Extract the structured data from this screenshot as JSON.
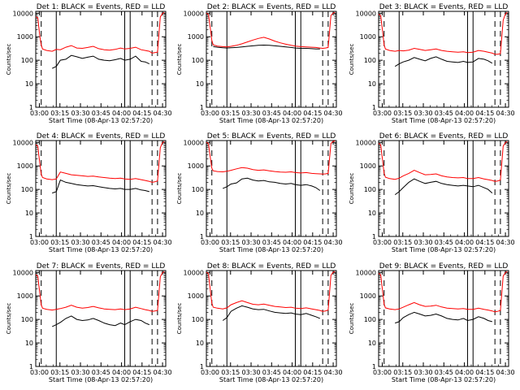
{
  "figure": {
    "xlabel": "Start Time (08-Apr-13 02:57:20)",
    "ylabel": "Counts/sec",
    "x_tick_labels": [
      "03:00",
      "03:15",
      "03:30",
      "03:45",
      "04:00",
      "04:15",
      "04:30"
    ],
    "y_tick_labels": [
      "1",
      "10",
      "100",
      "1000",
      "10000"
    ],
    "colors": {
      "events": "#000000",
      "lld": "#ff0000",
      "frame": "#000000"
    }
  },
  "chart_data": [
    {
      "type": "line",
      "title": "Det 1: BLACK = Events, RED = LLD",
      "x_unit": "minutes after 02:57:20",
      "xlim": [
        0,
        95
      ],
      "ylim": [
        1,
        12000
      ],
      "y_scale": "log",
      "solid_markers_x": [
        15,
        65,
        69
      ],
      "dashed_markers_x": [
        4,
        85,
        89
      ],
      "x": [
        0,
        1.5,
        3,
        4,
        5,
        8,
        12,
        15,
        18,
        22,
        26,
        30,
        34,
        38,
        42,
        46,
        50,
        54,
        58,
        62,
        65,
        69,
        73,
        77,
        80,
        83,
        85,
        87,
        89,
        91,
        92.5,
        94
      ],
      "series": [
        {
          "name": "Events",
          "color": "#000000",
          "values": [
            null,
            null,
            null,
            null,
            null,
            null,
            45,
            55,
            100,
            110,
            160,
            140,
            120,
            135,
            150,
            110,
            100,
            95,
            105,
            120,
            100,
            110,
            150,
            90,
            85,
            70,
            null,
            null,
            null,
            null,
            null,
            null
          ]
        },
        {
          "name": "LLD",
          "color": "#ff0000",
          "values": [
            7000,
            6500,
            1000,
            450,
            300,
            260,
            240,
            290,
            280,
            360,
            420,
            330,
            320,
            350,
            390,
            310,
            280,
            270,
            290,
            330,
            300,
            320,
            360,
            280,
            260,
            240,
            200,
            210,
            220,
            7000,
            9500,
            11000
          ]
        }
      ]
    },
    {
      "type": "line",
      "title": "Det 2: BLACK = Events, RED = LLD",
      "x_unit": "minutes after 02:57:20",
      "xlim": [
        0,
        95
      ],
      "ylim": [
        1,
        12000
      ],
      "y_scale": "log",
      "solid_markers_x": [
        15,
        65,
        69
      ],
      "dashed_markers_x": [
        4,
        85,
        89
      ],
      "x": [
        0,
        1.5,
        3,
        4,
        5,
        8,
        12,
        15,
        18,
        22,
        26,
        30,
        34,
        38,
        42,
        46,
        50,
        54,
        58,
        62,
        65,
        69,
        73,
        77,
        80,
        83,
        85,
        87,
        89,
        91,
        92.5,
        94
      ],
      "series": [
        {
          "name": "Events",
          "color": "#000000",
          "values": [
            null,
            null,
            null,
            null,
            380,
            360,
            340,
            330,
            340,
            350,
            370,
            390,
            410,
            430,
            440,
            430,
            410,
            390,
            370,
            350,
            330,
            320,
            320,
            310,
            300,
            300,
            null,
            null,
            null,
            null,
            null,
            null
          ]
        },
        {
          "name": "LLD",
          "color": "#ff0000",
          "values": [
            10000,
            9000,
            2000,
            700,
            450,
            400,
            380,
            370,
            390,
            430,
            500,
            600,
            720,
            850,
            950,
            800,
            650,
            550,
            480,
            430,
            400,
            380,
            370,
            360,
            350,
            330,
            320,
            330,
            350,
            8000,
            10000,
            11000
          ]
        }
      ]
    },
    {
      "type": "line",
      "title": "Det 3: BLACK = Events, RED = LLD",
      "x_unit": "minutes after 02:57:20",
      "xlim": [
        0,
        95
      ],
      "ylim": [
        1,
        12000
      ],
      "y_scale": "log",
      "solid_markers_x": [
        15,
        65,
        69
      ],
      "dashed_markers_x": [
        4,
        85,
        89
      ],
      "x": [
        0,
        1.5,
        3,
        4,
        5,
        8,
        12,
        15,
        18,
        22,
        26,
        30,
        34,
        38,
        42,
        46,
        50,
        54,
        58,
        62,
        65,
        69,
        73,
        77,
        80,
        83,
        85,
        87,
        89,
        91,
        92.5,
        94
      ],
      "series": [
        {
          "name": "Events",
          "color": "#000000",
          "values": [
            null,
            null,
            null,
            null,
            null,
            null,
            55,
            70,
            85,
            100,
            130,
            110,
            95,
            120,
            140,
            110,
            90,
            85,
            80,
            90,
            80,
            85,
            120,
            110,
            95,
            75,
            null,
            null,
            null,
            null,
            null,
            null
          ]
        },
        {
          "name": "LLD",
          "color": "#ff0000",
          "values": [
            9000,
            8000,
            1500,
            450,
            300,
            260,
            240,
            260,
            250,
            270,
            320,
            290,
            260,
            280,
            300,
            260,
            240,
            230,
            220,
            230,
            210,
            220,
            260,
            240,
            220,
            200,
            180,
            180,
            190,
            5000,
            9000,
            11000
          ]
        }
      ]
    },
    {
      "type": "line",
      "title": "Det 4: BLACK = Events, RED = LLD",
      "x_unit": "minutes after 02:57:20",
      "xlim": [
        0,
        95
      ],
      "ylim": [
        1,
        12000
      ],
      "y_scale": "log",
      "solid_markers_x": [
        15,
        65,
        69
      ],
      "dashed_markers_x": [
        4,
        85,
        89
      ],
      "x": [
        0,
        1.5,
        3,
        4,
        5,
        8,
        12,
        15,
        18,
        22,
        26,
        30,
        34,
        38,
        42,
        46,
        50,
        54,
        58,
        62,
        65,
        69,
        73,
        77,
        80,
        83,
        85,
        87,
        89,
        91,
        92.5,
        94
      ],
      "series": [
        {
          "name": "Events",
          "color": "#000000",
          "values": [
            null,
            null,
            null,
            null,
            null,
            null,
            70,
            80,
            250,
            200,
            180,
            160,
            150,
            140,
            145,
            130,
            120,
            110,
            105,
            110,
            100,
            100,
            110,
            95,
            90,
            80,
            null,
            null,
            null,
            null,
            null,
            null
          ]
        },
        {
          "name": "LLD",
          "color": "#ff0000",
          "values": [
            8000,
            7000,
            1200,
            450,
            320,
            280,
            260,
            280,
            550,
            480,
            420,
            400,
            380,
            360,
            370,
            340,
            320,
            300,
            290,
            300,
            280,
            270,
            290,
            260,
            240,
            220,
            200,
            210,
            230,
            6000,
            9500,
            11000
          ]
        }
      ]
    },
    {
      "type": "line",
      "title": "Det 5: BLACK = Events, RED = LLD",
      "x_unit": "minutes after 02:57:20",
      "xlim": [
        0,
        95
      ],
      "ylim": [
        1,
        12000
      ],
      "y_scale": "log",
      "solid_markers_x": [
        15,
        65,
        69
      ],
      "dashed_markers_x": [
        4,
        85,
        89
      ],
      "x": [
        0,
        1.5,
        3,
        4,
        5,
        8,
        12,
        15,
        18,
        22,
        26,
        30,
        34,
        38,
        42,
        46,
        50,
        54,
        58,
        62,
        65,
        69,
        73,
        77,
        80,
        83,
        85,
        87,
        89,
        91,
        92.5,
        94
      ],
      "series": [
        {
          "name": "Events",
          "color": "#000000",
          "values": [
            null,
            null,
            null,
            null,
            null,
            null,
            110,
            130,
            170,
            190,
            280,
            300,
            250,
            230,
            240,
            210,
            200,
            180,
            170,
            180,
            160,
            150,
            160,
            140,
            120,
            90,
            null,
            null,
            null,
            null,
            null,
            null
          ]
        },
        {
          "name": "LLD",
          "color": "#ff0000",
          "values": [
            10000,
            9000,
            2000,
            800,
            620,
            580,
            560,
            590,
            650,
            750,
            850,
            800,
            700,
            650,
            680,
            620,
            580,
            550,
            540,
            560,
            520,
            500,
            520,
            480,
            470,
            460,
            450,
            460,
            480,
            9000,
            11000,
            11500
          ]
        }
      ]
    },
    {
      "type": "line",
      "title": "Det 6: BLACK = Events, RED = LLD",
      "x_unit": "minutes after 02:57:20",
      "xlim": [
        0,
        95
      ],
      "ylim": [
        1,
        12000
      ],
      "y_scale": "log",
      "solid_markers_x": [
        15,
        65,
        69
      ],
      "dashed_markers_x": [
        4,
        85,
        89
      ],
      "x": [
        0,
        1.5,
        3,
        4,
        5,
        8,
        12,
        15,
        18,
        22,
        26,
        30,
        34,
        38,
        42,
        46,
        50,
        54,
        58,
        62,
        65,
        69,
        73,
        77,
        80,
        83,
        85,
        87,
        89,
        91,
        92.5,
        94
      ],
      "series": [
        {
          "name": "Events",
          "color": "#000000",
          "values": [
            null,
            null,
            null,
            null,
            null,
            null,
            60,
            80,
            120,
            200,
            280,
            220,
            180,
            200,
            220,
            180,
            160,
            150,
            140,
            150,
            140,
            130,
            150,
            120,
            100,
            70,
            null,
            null,
            null,
            null,
            null,
            null
          ]
        },
        {
          "name": "LLD",
          "color": "#ff0000",
          "values": [
            9000,
            8000,
            1500,
            500,
            330,
            290,
            270,
            300,
            380,
            480,
            650,
            520,
            420,
            430,
            460,
            380,
            340,
            320,
            310,
            320,
            290,
            290,
            320,
            280,
            260,
            240,
            220,
            230,
            250,
            7000,
            9500,
            11000
          ]
        }
      ]
    },
    {
      "type": "line",
      "title": "Det 7: BLACK = Events, RED = LLD",
      "x_unit": "minutes after 02:57:20",
      "xlim": [
        0,
        95
      ],
      "ylim": [
        1,
        12000
      ],
      "y_scale": "log",
      "solid_markers_x": [
        15,
        65,
        69
      ],
      "dashed_markers_x": [
        4,
        85,
        89
      ],
      "x": [
        0,
        1.5,
        3,
        4,
        5,
        8,
        12,
        15,
        18,
        22,
        26,
        30,
        34,
        38,
        42,
        46,
        50,
        54,
        58,
        62,
        65,
        69,
        73,
        77,
        80,
        83,
        85,
        87,
        89,
        91,
        92.5,
        94
      ],
      "series": [
        {
          "name": "Events",
          "color": "#000000",
          "values": [
            null,
            null,
            null,
            null,
            null,
            null,
            50,
            60,
            75,
            110,
            140,
            100,
            90,
            95,
            110,
            90,
            70,
            60,
            55,
            70,
            60,
            80,
            100,
            90,
            70,
            60,
            null,
            null,
            null,
            null,
            null,
            null
          ]
        },
        {
          "name": "LLD",
          "color": "#ff0000",
          "values": [
            8000,
            7000,
            1200,
            420,
            300,
            270,
            250,
            270,
            290,
            330,
            400,
            330,
            300,
            320,
            360,
            310,
            280,
            270,
            260,
            280,
            260,
            280,
            330,
            290,
            260,
            240,
            220,
            230,
            240,
            6500,
            9500,
            11000
          ]
        }
      ]
    },
    {
      "type": "line",
      "title": "Det 8: BLACK = Events, RED = LLD",
      "x_unit": "minutes after 02:57:20",
      "xlim": [
        0,
        95
      ],
      "ylim": [
        1,
        12000
      ],
      "y_scale": "log",
      "solid_markers_x": [
        15,
        65,
        69
      ],
      "dashed_markers_x": [
        4,
        85,
        89
      ],
      "x": [
        0,
        1.5,
        3,
        4,
        5,
        8,
        12,
        15,
        18,
        22,
        26,
        30,
        34,
        38,
        42,
        46,
        50,
        54,
        58,
        62,
        65,
        69,
        73,
        77,
        80,
        83,
        85,
        87,
        89,
        91,
        92.5,
        94
      ],
      "series": [
        {
          "name": "Events",
          "color": "#000000",
          "values": [
            null,
            null,
            null,
            null,
            null,
            null,
            90,
            120,
            220,
            300,
            380,
            330,
            280,
            260,
            270,
            230,
            200,
            190,
            180,
            190,
            170,
            160,
            180,
            150,
            130,
            110,
            null,
            null,
            null,
            null,
            null,
            null
          ]
        },
        {
          "name": "LLD",
          "color": "#ff0000",
          "values": [
            10000,
            9000,
            1500,
            500,
            330,
            300,
            280,
            310,
            420,
            520,
            620,
            520,
            440,
            420,
            450,
            400,
            360,
            340,
            320,
            330,
            300,
            290,
            310,
            280,
            260,
            240,
            220,
            230,
            250,
            7500,
            10000,
            11000
          ]
        }
      ]
    },
    {
      "type": "line",
      "title": "Det 9: BLACK = Events, RED = LLD",
      "x_unit": "minutes after 02:57:20",
      "xlim": [
        0,
        95
      ],
      "ylim": [
        1,
        12000
      ],
      "y_scale": "log",
      "solid_markers_x": [
        15,
        65,
        69
      ],
      "dashed_markers_x": [
        4,
        85,
        89
      ],
      "x": [
        0,
        1.5,
        3,
        4,
        5,
        8,
        12,
        15,
        18,
        22,
        26,
        30,
        34,
        38,
        42,
        46,
        50,
        54,
        58,
        62,
        65,
        69,
        73,
        77,
        80,
        83,
        85,
        87,
        89,
        91,
        92.5,
        94
      ],
      "series": [
        {
          "name": "Events",
          "color": "#000000",
          "values": [
            null,
            null,
            null,
            null,
            null,
            null,
            70,
            80,
            120,
            160,
            200,
            170,
            140,
            150,
            170,
            140,
            110,
            100,
            95,
            110,
            90,
            100,
            130,
            110,
            90,
            80,
            null,
            null,
            null,
            null,
            null,
            null
          ]
        },
        {
          "name": "LLD",
          "color": "#ff0000",
          "values": [
            9000,
            8000,
            1400,
            450,
            310,
            280,
            260,
            280,
            330,
            420,
            520,
            420,
            360,
            370,
            400,
            340,
            300,
            290,
            280,
            290,
            270,
            270,
            300,
            270,
            250,
            230,
            210,
            220,
            240,
            7000,
            9500,
            11000
          ]
        }
      ]
    }
  ]
}
